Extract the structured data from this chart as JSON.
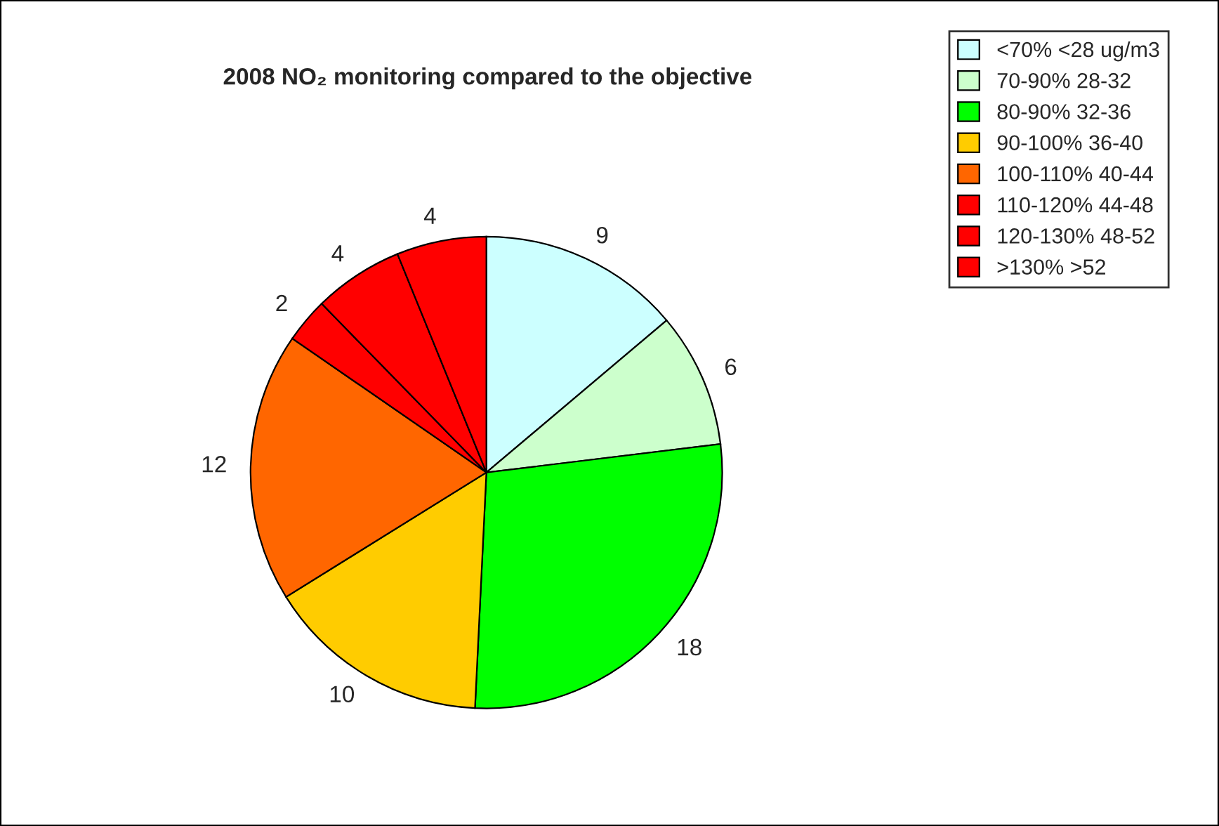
{
  "chart_data": {
    "type": "pie",
    "title": "2008 NO₂ monitoring compared to the objective",
    "categories": [
      "<70% <28 ug/m3",
      "70-90% 28-32",
      "80-90% 32-36",
      "90-100% 36-40",
      "100-110% 40-44",
      "110-120% 44-48",
      "120-130% 48-52",
      ">130% >52"
    ],
    "values": [
      9,
      6,
      18,
      10,
      12,
      2,
      4,
      4
    ],
    "colors": [
      "#ccffff",
      "#ccffcc",
      "#00ff00",
      "#ffcc00",
      "#ff6600",
      "#ff0000",
      "#ff0000",
      "#ff0000"
    ],
    "data_labels": true,
    "legend": "top right"
  }
}
